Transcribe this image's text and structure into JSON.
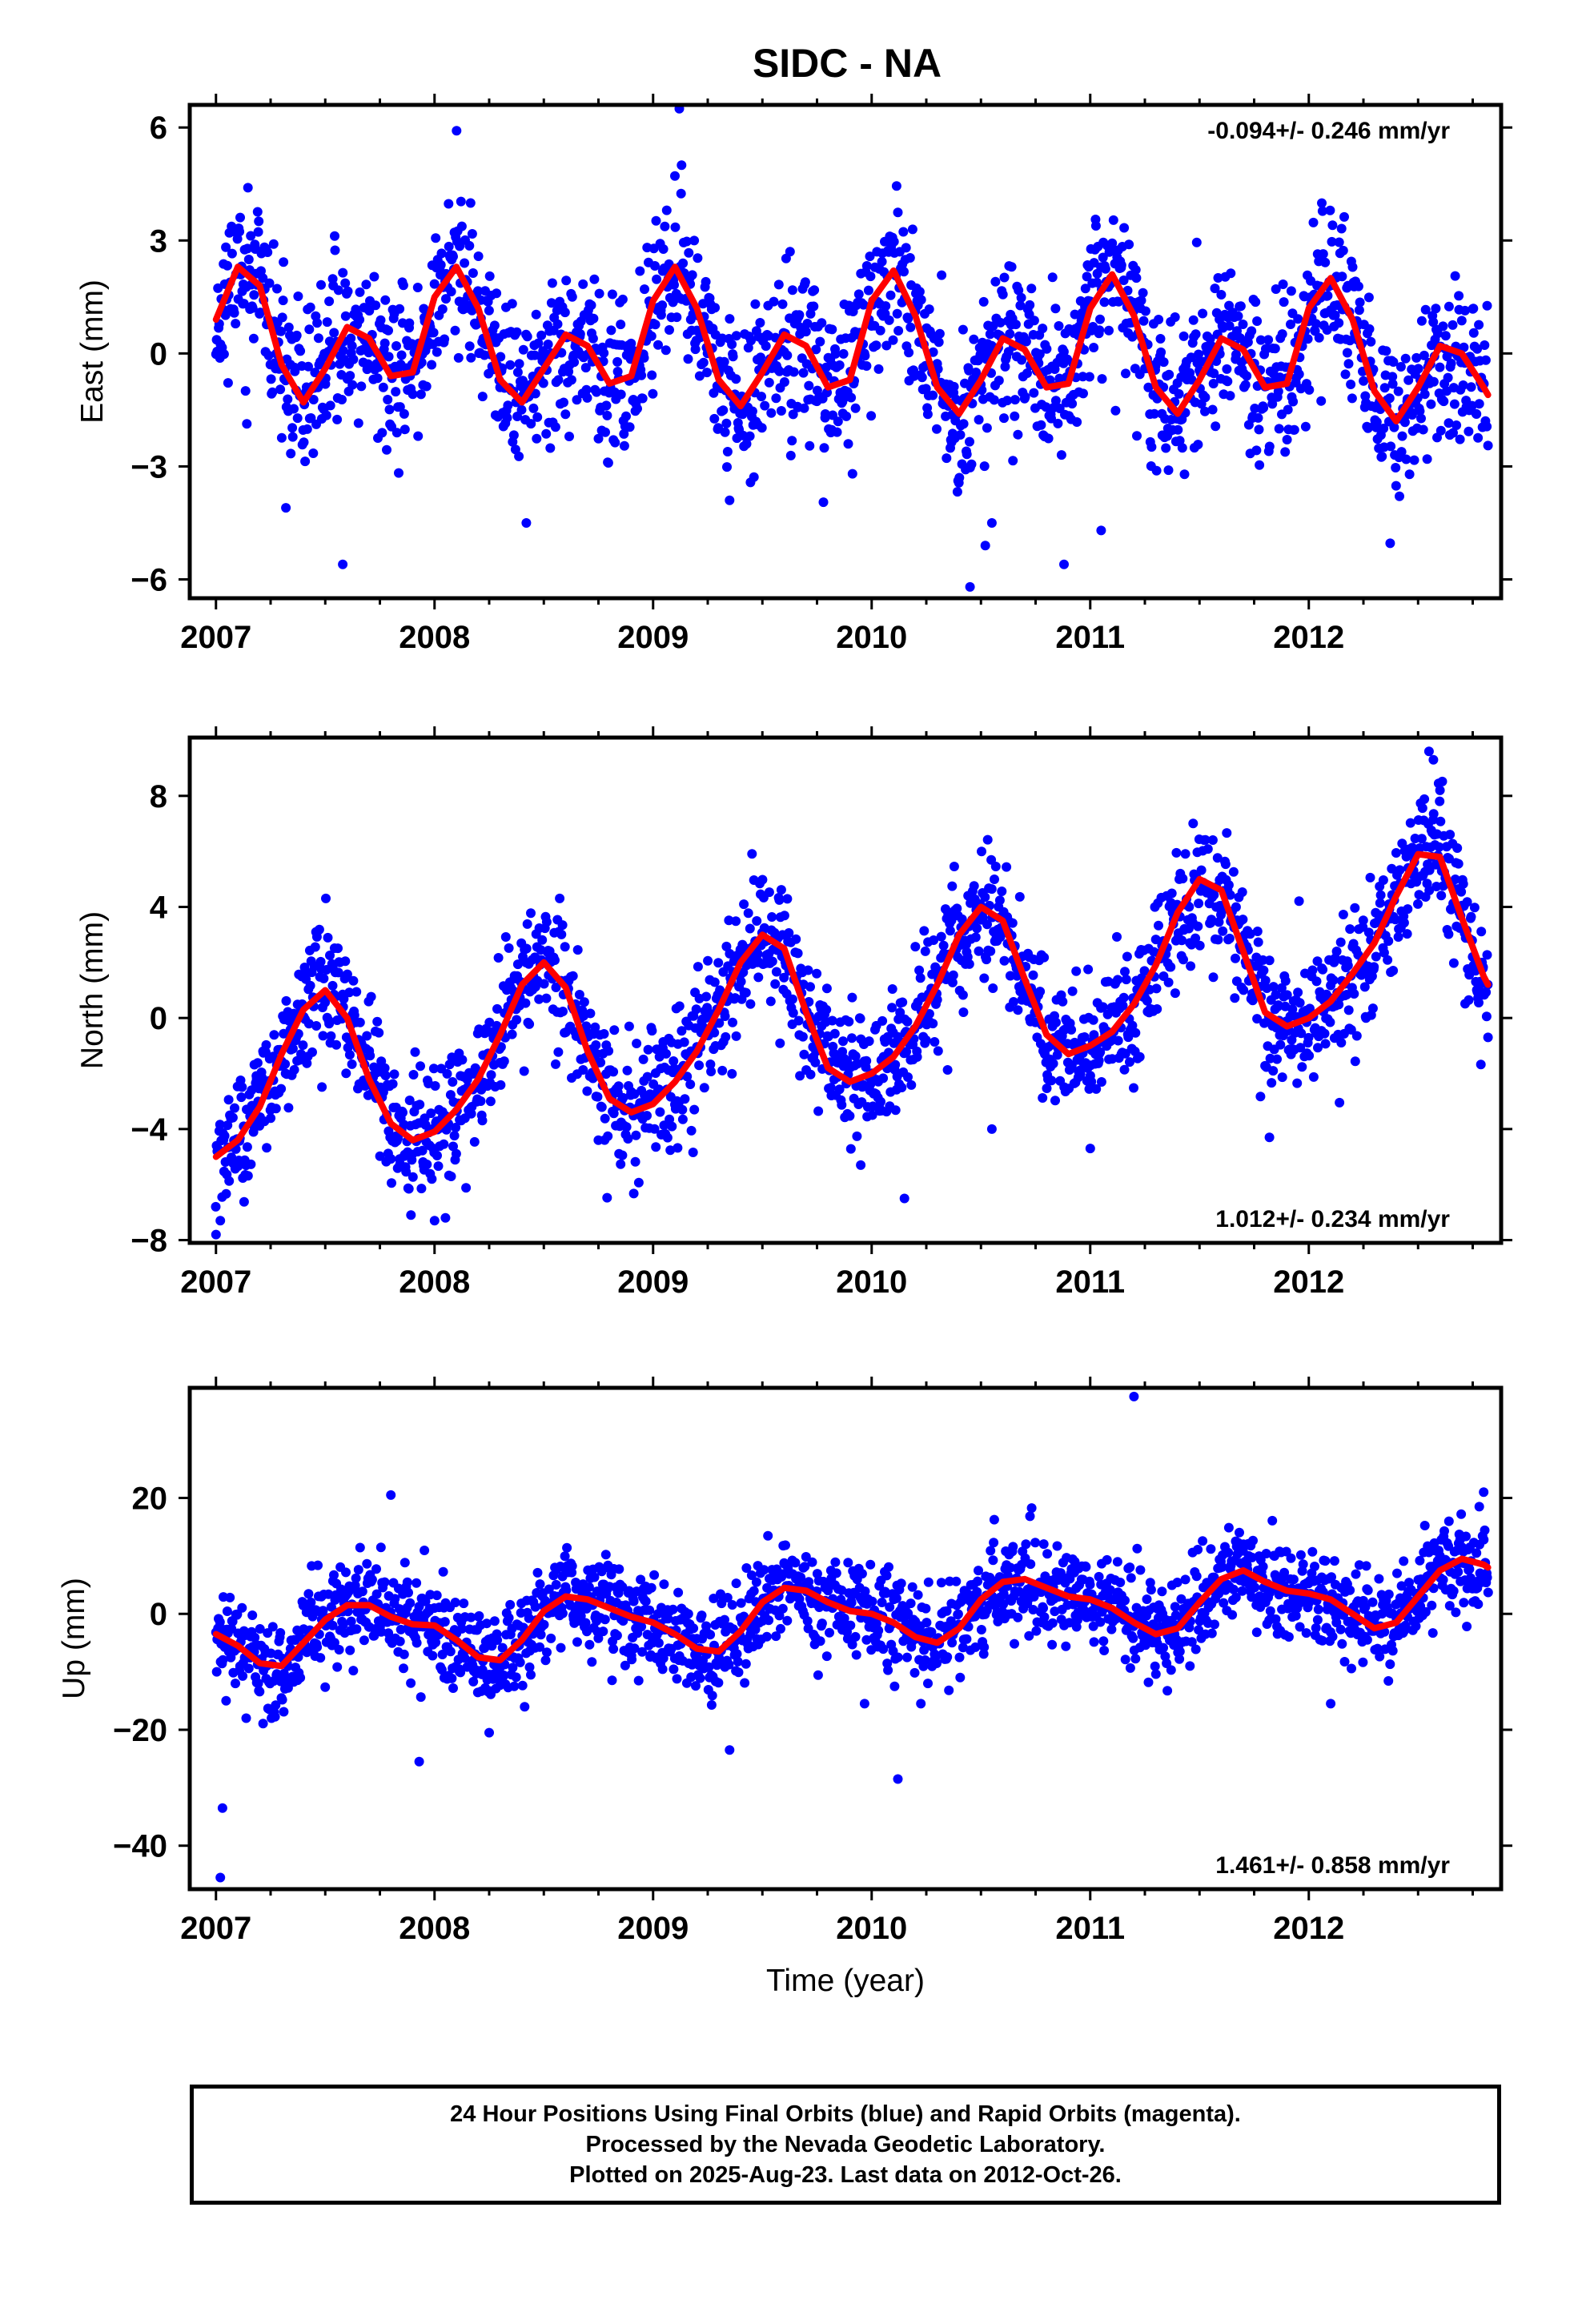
{
  "title": "SIDC - NA",
  "footer": {
    "line1": "24 Hour Positions Using Final Orbits (blue) and Rapid Orbits (magenta).",
    "line2": "Processed by the Nevada Geodetic Laboratory.",
    "line3": "Plotted on 2025-Aug-23. Last data on 2012-Oct-26."
  },
  "colors": {
    "points": "#0000ff",
    "fit": "#ff0000",
    "frame": "#000000"
  },
  "chart_data": [
    {
      "type": "scatter",
      "component": "East",
      "ylabel": "East (mm)",
      "xlabel": "",
      "rate_label": "-0.094+/- 0.246 mm/yr",
      "rate_label_position": "top-right",
      "xlim": [
        2006.88,
        2012.88
      ],
      "ylim": [
        -6.5,
        6.6
      ],
      "xticks": [
        "2007",
        "2008",
        "2009",
        "2010",
        "2011",
        "2012"
      ],
      "yticks": [
        6,
        3,
        0,
        -3,
        -6
      ],
      "ytick_labels": [
        "6",
        "3",
        "0",
        "−3",
        "−6"
      ],
      "data_start": 2007.0,
      "data_end": 2012.82,
      "series": [
        {
          "kind": "fit",
          "x": [
            2007.0,
            2007.1,
            2007.2,
            2007.3,
            2007.4,
            2007.5,
            2007.6,
            2007.7,
            2007.8,
            2007.9,
            2008.0,
            2008.1,
            2008.2,
            2008.3,
            2008.4,
            2008.5,
            2008.6,
            2008.7,
            2008.8,
            2008.9,
            2009.0,
            2009.1,
            2009.2,
            2009.3,
            2009.4,
            2009.5,
            2009.6,
            2009.7,
            2009.8,
            2009.9,
            2010.0,
            2010.1,
            2010.2,
            2010.3,
            2010.4,
            2010.5,
            2010.6,
            2010.7,
            2010.8,
            2010.9,
            2011.0,
            2011.1,
            2011.2,
            2011.3,
            2011.4,
            2011.5,
            2011.6,
            2011.7,
            2011.8,
            2011.9,
            2012.0,
            2012.1,
            2012.2,
            2012.3,
            2012.4,
            2012.5,
            2012.6,
            2012.7,
            2012.8,
            2012.82
          ],
          "y": [
            0.9,
            2.3,
            1.8,
            -0.3,
            -1.3,
            -0.4,
            0.7,
            0.4,
            -0.6,
            -0.5,
            1.5,
            2.3,
            1.2,
            -0.7,
            -1.3,
            -0.4,
            0.5,
            0.2,
            -0.8,
            -0.6,
            1.4,
            2.3,
            1.2,
            -0.7,
            -1.4,
            -0.5,
            0.5,
            0.2,
            -0.9,
            -0.7,
            1.4,
            2.2,
            1.0,
            -0.9,
            -1.6,
            -0.7,
            0.4,
            0.1,
            -0.9,
            -0.8,
            1.2,
            2.1,
            1.0,
            -0.9,
            -1.6,
            -0.7,
            0.4,
            0.1,
            -0.9,
            -0.8,
            1.2,
            2.0,
            0.9,
            -1.0,
            -1.8,
            -0.9,
            0.2,
            0.0,
            -0.9,
            -1.1
          ]
        },
        {
          "kind": "outliers",
          "x": [
            2007.58,
            2009.12,
            2009.13,
            2010.45,
            2010.88,
            2007.32,
            2008.42,
            2009.35,
            2010.52,
            2010.55,
            2011.05
          ],
          "y": [
            -5.6,
            6.5,
            5.0,
            -6.2,
            -5.6,
            -4.1,
            -4.5,
            -3.9,
            -5.1,
            -4.5,
            -4.7
          ]
        }
      ]
    },
    {
      "type": "scatter",
      "component": "North",
      "ylabel": "North (mm)",
      "xlabel": "",
      "rate_label": "1.012+/- 0.234 mm/yr",
      "rate_label_position": "bottom-right",
      "xlim": [
        2006.88,
        2012.88
      ],
      "ylim": [
        -8.1,
        10.1
      ],
      "xticks": [
        "2007",
        "2008",
        "2009",
        "2010",
        "2011",
        "2012"
      ],
      "yticks": [
        8,
        4,
        0,
        -4,
        -8
      ],
      "ytick_labels": [
        "8",
        "4",
        "0",
        "−4",
        "−8"
      ],
      "data_start": 2007.0,
      "data_end": 2012.82,
      "series": [
        {
          "kind": "fit",
          "x": [
            2007.0,
            2007.1,
            2007.2,
            2007.3,
            2007.4,
            2007.5,
            2007.6,
            2007.7,
            2007.8,
            2007.9,
            2008.0,
            2008.1,
            2008.2,
            2008.3,
            2008.4,
            2008.5,
            2008.6,
            2008.7,
            2008.8,
            2008.9,
            2009.0,
            2009.1,
            2009.2,
            2009.3,
            2009.4,
            2009.5,
            2009.6,
            2009.7,
            2009.8,
            2009.9,
            2010.0,
            2010.1,
            2010.2,
            2010.3,
            2010.4,
            2010.5,
            2010.6,
            2010.7,
            2010.8,
            2010.9,
            2011.0,
            2011.1,
            2011.2,
            2011.3,
            2011.4,
            2011.5,
            2011.6,
            2011.7,
            2011.8,
            2011.9,
            2012.0,
            2012.1,
            2012.2,
            2012.3,
            2012.4,
            2012.5,
            2012.6,
            2012.7,
            2012.8,
            2012.82
          ],
          "y": [
            -5.0,
            -4.4,
            -3.2,
            -1.3,
            0.3,
            1.0,
            0.0,
            -2.2,
            -3.8,
            -4.4,
            -4.1,
            -3.3,
            -2.2,
            -0.6,
            1.2,
            2.0,
            1.1,
            -1.2,
            -2.9,
            -3.4,
            -3.1,
            -2.3,
            -1.2,
            0.3,
            2.0,
            3.0,
            2.5,
            0.2,
            -1.8,
            -2.3,
            -2.0,
            -1.4,
            -0.3,
            1.2,
            3.0,
            4.0,
            3.5,
            1.4,
            -0.6,
            -1.3,
            -1.0,
            -0.5,
            0.5,
            1.9,
            3.8,
            5.0,
            4.6,
            2.4,
            0.2,
            -0.3,
            0.0,
            0.6,
            1.6,
            2.7,
            4.4,
            5.9,
            5.8,
            3.6,
            1.5,
            1.2
          ]
        },
        {
          "kind": "outliers",
          "x": [
            2007.0,
            2007.02,
            2008.0,
            2008.05,
            2009.95,
            2010.15,
            2010.55,
            2011.0,
            2011.82,
            2012.82,
            2012.55,
            2012.57,
            2012.6
          ],
          "y": [
            -7.8,
            -7.3,
            -7.3,
            -7.2,
            -5.3,
            -6.5,
            -4.0,
            -4.7,
            -4.3,
            -0.7,
            9.6,
            9.3,
            8.2
          ]
        }
      ]
    },
    {
      "type": "scatter",
      "component": "Up",
      "ylabel": "Up (mm)",
      "xlabel": "Time (year)",
      "rate_label": "1.461+/- 0.858 mm/yr",
      "rate_label_position": "bottom-right",
      "xlim": [
        2006.88,
        2012.88
      ],
      "ylim": [
        -47.5,
        39
      ],
      "xticks": [
        "2007",
        "2008",
        "2009",
        "2010",
        "2011",
        "2012"
      ],
      "yticks": [
        20,
        0,
        -20,
        -40
      ],
      "ytick_labels": [
        "20",
        "0",
        "−20",
        "−40"
      ],
      "data_start": 2007.0,
      "data_end": 2012.82,
      "series": [
        {
          "kind": "fit",
          "x": [
            2007.0,
            2007.1,
            2007.2,
            2007.3,
            2007.4,
            2007.5,
            2007.6,
            2007.7,
            2007.8,
            2007.9,
            2008.0,
            2008.1,
            2008.2,
            2008.3,
            2008.4,
            2008.5,
            2008.6,
            2008.7,
            2008.8,
            2008.9,
            2009.0,
            2009.1,
            2009.2,
            2009.3,
            2009.4,
            2009.5,
            2009.6,
            2009.7,
            2009.8,
            2009.9,
            2010.0,
            2010.1,
            2010.2,
            2010.3,
            2010.4,
            2010.5,
            2010.6,
            2010.7,
            2010.8,
            2010.9,
            2011.0,
            2011.1,
            2011.2,
            2011.3,
            2011.4,
            2011.5,
            2011.6,
            2011.7,
            2011.8,
            2011.9,
            2012.0,
            2012.1,
            2012.2,
            2012.3,
            2012.4,
            2012.5,
            2012.6,
            2012.7,
            2012.8,
            2012.82
          ],
          "y": [
            -3.5,
            -5.5,
            -8.5,
            -9.0,
            -5.0,
            -1.0,
            1.5,
            1.5,
            -0.5,
            -1.8,
            -2.0,
            -4.5,
            -7.5,
            -8.0,
            -4.5,
            0.5,
            3.0,
            2.5,
            1.0,
            -0.5,
            -1.5,
            -3.5,
            -6.0,
            -6.5,
            -3.0,
            2.0,
            4.5,
            4.0,
            2.0,
            0.5,
            0.0,
            -1.5,
            -4.0,
            -5.0,
            -2.5,
            2.5,
            5.5,
            6.0,
            4.5,
            3.0,
            2.5,
            1.0,
            -1.5,
            -3.5,
            -2.5,
            2.0,
            6.0,
            7.5,
            5.5,
            4.0,
            3.5,
            2.5,
            0.0,
            -2.5,
            -1.5,
            3.0,
            7.5,
            9.5,
            8.5,
            8.0
          ]
        },
        {
          "kind": "outliers",
          "x": [
            2007.02,
            2007.03,
            2007.8,
            2007.93,
            2008.25,
            2009.35,
            2010.12,
            2011.2,
            2012.1,
            2012.8,
            2012.78
          ],
          "y": [
            -45.5,
            -33.5,
            20.5,
            -25.5,
            -20.5,
            -23.5,
            -28.5,
            37.5,
            -15.5,
            21.0,
            18.5
          ]
        }
      ]
    }
  ]
}
